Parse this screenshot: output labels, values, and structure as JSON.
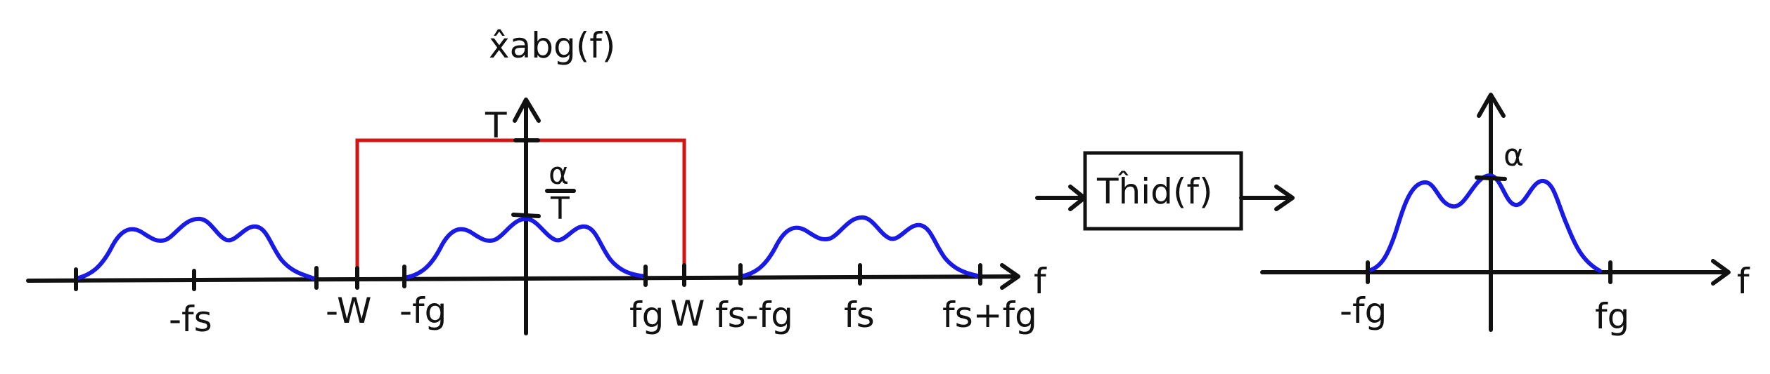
{
  "left_plot": {
    "ylabel": "x̂abg(f)",
    "xlabel": "f",
    "y_mark_T": "T",
    "y_mark_alpha_num": "α",
    "y_mark_alpha_den": "T",
    "ticks": {
      "minus_fs": "-fs",
      "minus_W": "-W",
      "minus_fg": "-fg",
      "fg": "fg",
      "W": "W",
      "fs_minus_fg": "fs-fg",
      "fs": "fs",
      "fs_plus_fg": "fs+fg"
    },
    "colors": {
      "spectrum": "#1a1ae6",
      "filter": "#d21414",
      "axes": "#111111"
    }
  },
  "filter_block": {
    "label": "Tĥid(f)"
  },
  "right_plot": {
    "xlabel": "f",
    "y_mark_alpha": "α",
    "ticks": {
      "minus_fg": "-fg",
      "fg": "fg"
    }
  }
}
